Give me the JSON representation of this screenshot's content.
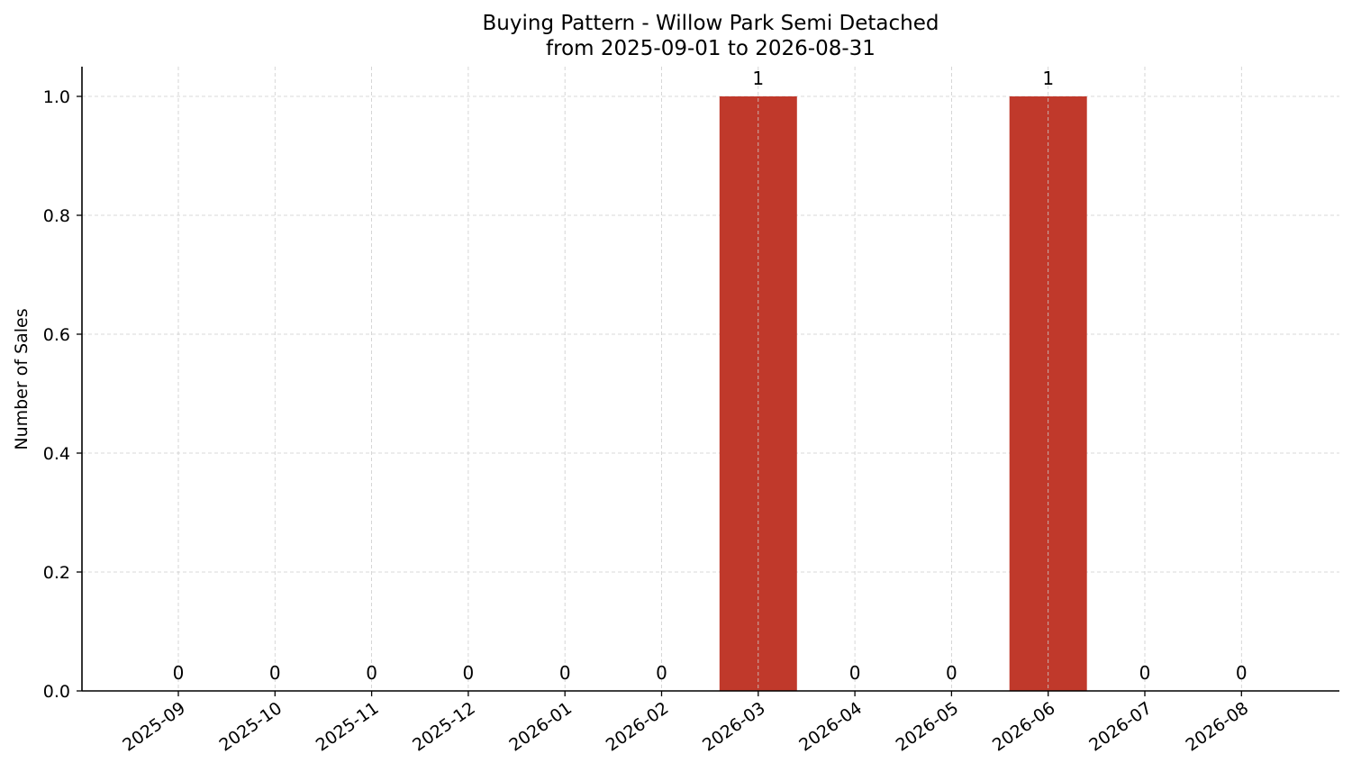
{
  "chart_data": {
    "type": "bar",
    "title": "Buying Pattern - Willow Park Semi Detached",
    "subtitle": "from 2025-09-01 to 2026-08-31",
    "xlabel": "",
    "ylabel": "Number of Sales",
    "categories": [
      "2025-09",
      "2025-10",
      "2025-11",
      "2025-12",
      "2026-01",
      "2026-02",
      "2026-03",
      "2026-04",
      "2026-05",
      "2026-06",
      "2026-07",
      "2026-08"
    ],
    "values": [
      0,
      0,
      0,
      0,
      0,
      0,
      1,
      0,
      0,
      1,
      0,
      0
    ],
    "data_labels": [
      "0",
      "0",
      "0",
      "0",
      "0",
      "0",
      "1",
      "0",
      "0",
      "1",
      "0",
      "0"
    ],
    "ylim": [
      0,
      1.05
    ],
    "yticks": [
      0.0,
      0.2,
      0.4,
      0.6,
      0.8,
      1.0
    ],
    "ytick_labels": [
      "0.0",
      "0.2",
      "0.4",
      "0.6",
      "0.8",
      "1.0"
    ],
    "bar_color": "#c0392b",
    "grid": true,
    "legend": "none"
  }
}
